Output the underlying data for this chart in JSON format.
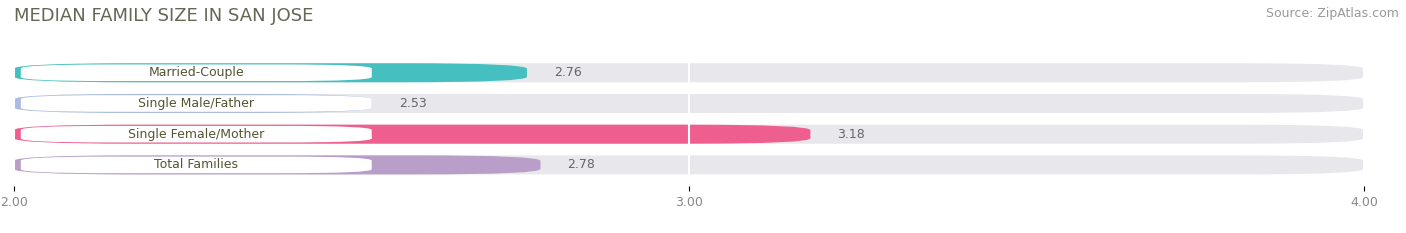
{
  "title": "MEDIAN FAMILY SIZE IN SAN JOSE",
  "source": "Source: ZipAtlas.com",
  "categories": [
    "Married-Couple",
    "Single Male/Father",
    "Single Female/Mother",
    "Total Families"
  ],
  "values": [
    2.76,
    2.53,
    3.18,
    2.78
  ],
  "bar_colors": [
    "#45BFBF",
    "#AABCDF",
    "#EE5F90",
    "#B89EC8"
  ],
  "label_bg_color": "#FFFFFF",
  "background_color": "#FFFFFF",
  "bar_bg_color": "#E8E8EC",
  "xlim": [
    2.0,
    4.0
  ],
  "xticks": [
    2.0,
    3.0,
    4.0
  ],
  "title_fontsize": 13,
  "source_fontsize": 9,
  "label_fontsize": 9,
  "value_fontsize": 9,
  "grid_color": "#DDDDDD"
}
